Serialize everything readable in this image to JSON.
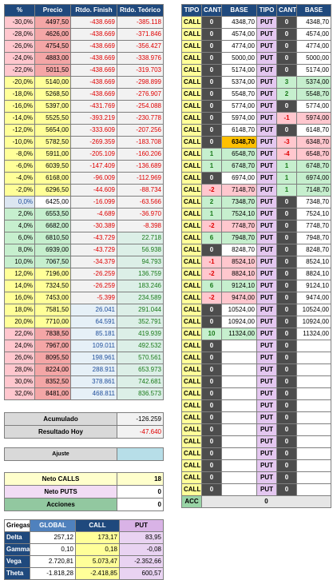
{
  "left_table": {
    "headers": [
      "%",
      "Precio",
      "Rtdo. Finish",
      "Rtdo. Teórico"
    ],
    "rows": [
      [
        "-30,0%",
        "4497,50",
        "-438.669",
        "-385.118"
      ],
      [
        "-28,0%",
        "4626,00",
        "-438.669",
        "-371.846"
      ],
      [
        "-26,0%",
        "4754,50",
        "-438.669",
        "-356.427"
      ],
      [
        "-24,0%",
        "4883,00",
        "-438.669",
        "-338.976"
      ],
      [
        "-22,0%",
        "5011,50",
        "-438.669",
        "-319.703"
      ],
      [
        "-20,0%",
        "5140,00",
        "-438.669",
        "-298.899"
      ],
      [
        "-18,0%",
        "5268,50",
        "-438.669",
        "-276.907"
      ],
      [
        "-16,0%",
        "5397,00",
        "-431.769",
        "-254.088"
      ],
      [
        "-14,0%",
        "5525,50",
        "-393.219",
        "-230.778"
      ],
      [
        "-12,0%",
        "5654,00",
        "-333.609",
        "-207.256"
      ],
      [
        "-10,0%",
        "5782,50",
        "-269.359",
        "-183.708"
      ],
      [
        "-8,0%",
        "5911,00",
        "-205.109",
        "-160.206"
      ],
      [
        "-6,0%",
        "6039,50",
        "-147.409",
        "-136.689"
      ],
      [
        "-4,0%",
        "6168,00",
        "-96.009",
        "-112.969"
      ],
      [
        "-2,0%",
        "6296,50",
        "-44.609",
        "-88.734"
      ],
      [
        "0,0%",
        "6425,00",
        "-16.099",
        "-63.566"
      ],
      [
        "2,0%",
        "6553,50",
        "-4.689",
        "-36.970"
      ],
      [
        "4,0%",
        "6682,00",
        "-30.389",
        "-8.398"
      ],
      [
        "6,0%",
        "6810,50",
        "-43.729",
        "22.718"
      ],
      [
        "8,0%",
        "6939,00",
        "-43.729",
        "56.938"
      ],
      [
        "10,0%",
        "7067,50",
        "-34.379",
        "94.793"
      ],
      [
        "12,0%",
        "7196,00",
        "-26.259",
        "136.759"
      ],
      [
        "14,0%",
        "7324,50",
        "-26.259",
        "183.246"
      ],
      [
        "16,0%",
        "7453,00",
        "-5.399",
        "234.589"
      ],
      [
        "18,0%",
        "7581,50",
        "26.041",
        "291.044"
      ],
      [
        "20,0%",
        "7710,00",
        "64.591",
        "352.791"
      ],
      [
        "22,0%",
        "7838,50",
        "85.181",
        "419.939"
      ],
      [
        "24,0%",
        "7967,00",
        "109.011",
        "492.532"
      ],
      [
        "26,0%",
        "8095,50",
        "198.961",
        "570.561"
      ],
      [
        "28,0%",
        "8224,00",
        "288.911",
        "653.973"
      ],
      [
        "30,0%",
        "8352,50",
        "378.861",
        "742.681"
      ],
      [
        "32,0%",
        "8481,00",
        "468.811",
        "836.573"
      ]
    ]
  },
  "right_table": {
    "headers": [
      "TIPO",
      "CANT",
      "BASE",
      "TIPO",
      "CANT",
      "BASE"
    ],
    "rows": [
      [
        "CALL",
        "0",
        "4348,70",
        "PUT",
        "0",
        "4348,70"
      ],
      [
        "CALL",
        "0",
        "4574,00",
        "PUT",
        "0",
        "4574,00"
      ],
      [
        "CALL",
        "0",
        "4774,00",
        "PUT",
        "0",
        "4774,00"
      ],
      [
        "CALL",
        "0",
        "5000,00",
        "PUT",
        "0",
        "5000,00"
      ],
      [
        "CALL",
        "0",
        "5174,00",
        "PUT",
        "0",
        "5174,00"
      ],
      [
        "CALL",
        "0",
        "5374,00",
        "PUT",
        "3",
        "5374,00"
      ],
      [
        "CALL",
        "0",
        "5548,70",
        "PUT",
        "2",
        "5548,70"
      ],
      [
        "CALL",
        "0",
        "5774,00",
        "PUT",
        "0",
        "5774,00"
      ],
      [
        "CALL",
        "0",
        "5974,00",
        "PUT",
        "-1",
        "5974,00"
      ],
      [
        "CALL",
        "0",
        "6148,70",
        "PUT",
        "0",
        "6148,70"
      ],
      [
        "CALL",
        "0",
        "6348,70",
        "PUT",
        "-3",
        "6348,70"
      ],
      [
        "CALL",
        "1",
        "6548,70",
        "PUT",
        "-4",
        "6548,70"
      ],
      [
        "CALL",
        "1",
        "6748,70",
        "PUT",
        "1",
        "6748,70"
      ],
      [
        "CALL",
        "0",
        "6974,00",
        "PUT",
        "1",
        "6974,00"
      ],
      [
        "CALL",
        "-2",
        "7148,70",
        "PUT",
        "1",
        "7148,70"
      ],
      [
        "CALL",
        "2",
        "7348,70",
        "PUT",
        "0",
        "7348,70"
      ],
      [
        "CALL",
        "1",
        "7524,10",
        "PUT",
        "0",
        "7524,10"
      ],
      [
        "CALL",
        "-2",
        "7748,70",
        "PUT",
        "0",
        "7748,70"
      ],
      [
        "CALL",
        "6",
        "7948,70",
        "PUT",
        "0",
        "7948,70"
      ],
      [
        "CALL",
        "0",
        "8248,70",
        "PUT",
        "0",
        "8248,70"
      ],
      [
        "CALL",
        "-1",
        "8524,10",
        "PUT",
        "0",
        "8524,10"
      ],
      [
        "CALL",
        "-2",
        "8824,10",
        "PUT",
        "0",
        "8824,10"
      ],
      [
        "CALL",
        "6",
        "9124,10",
        "PUT",
        "0",
        "9124,10"
      ],
      [
        "CALL",
        "-2",
        "9474,00",
        "PUT",
        "0",
        "9474,00"
      ],
      [
        "CALL",
        "0",
        "10524,00",
        "PUT",
        "0",
        "10524,00"
      ],
      [
        "CALL",
        "0",
        "10924,00",
        "PUT",
        "0",
        "10924,00"
      ],
      [
        "CALL",
        "10",
        "11324,00",
        "PUT",
        "0",
        "11324,00"
      ],
      [
        "CALL",
        "0",
        "",
        "PUT",
        "0",
        ""
      ],
      [
        "CALL",
        "0",
        "",
        "PUT",
        "0",
        ""
      ],
      [
        "CALL",
        "0",
        "",
        "PUT",
        "0",
        ""
      ],
      [
        "CALL",
        "0",
        "",
        "PUT",
        "0",
        ""
      ],
      [
        "CALL",
        "0",
        "",
        "PUT",
        "0",
        ""
      ],
      [
        "CALL",
        "0",
        "",
        "PUT",
        "0",
        ""
      ],
      [
        "CALL",
        "0",
        "",
        "PUT",
        "0",
        ""
      ],
      [
        "CALL",
        "0",
        "",
        "PUT",
        "0",
        ""
      ],
      [
        "CALL",
        "0",
        "",
        "PUT",
        "0",
        ""
      ],
      [
        "CALL",
        "0",
        "",
        "PUT",
        "0",
        ""
      ],
      [
        "CALL",
        "0",
        "",
        "PUT",
        "0",
        ""
      ],
      [
        "CALL",
        "0",
        "",
        "PUT",
        "0",
        ""
      ],
      [
        "CALL",
        "0",
        "",
        "PUT",
        "0",
        ""
      ]
    ],
    "footer_label": "ACC",
    "footer_value": "0"
  },
  "summary": {
    "acumulado_label": "Acumulado",
    "acumulado_value": "-126.259",
    "resultado_label": "Resultado Hoy",
    "resultado_value": "-47.640",
    "ajuste_label": "Ajuste",
    "neto_calls_label": "Neto CALLS",
    "neto_calls_value": "18",
    "neto_puts_label": "Neto PUTS",
    "neto_puts_value": "0",
    "acciones_label": "Acciones",
    "acciones_value": "0"
  },
  "greeks": {
    "headers": [
      "Griegas",
      "GLOBAL",
      "CALL",
      "PUT"
    ],
    "rows": [
      [
        "Delta",
        "257,12",
        "173,17",
        "83,95"
      ],
      [
        "Gamma",
        "0,10",
        "0,18",
        "-0,08"
      ],
      [
        "Vega",
        "2.720,81",
        "5.073,47",
        "-2.352,66"
      ],
      [
        "Theta",
        "-1.818,28",
        "-2.418,85",
        "600,57"
      ]
    ]
  },
  "colors": {
    "header_blue": "#1f497d",
    "call_yellow": "#ffff99",
    "put_purple": "#e4c7f0",
    "negative_red": "#e00000",
    "highlight_orange": "#ffc000"
  }
}
